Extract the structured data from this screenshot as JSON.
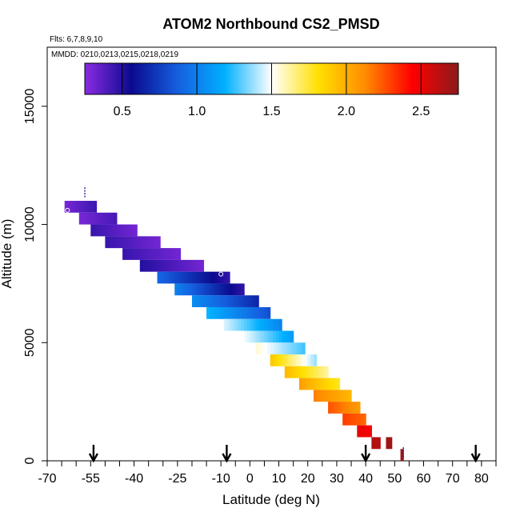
{
  "chart_data": {
    "type": "heatmap",
    "title": "ATOM2 Northbound CS2_PMSD",
    "flights_label": "Flts: 6,7,8,9,10",
    "mmdd_label": "MMDD: 0210,0213,0215,0218,0219",
    "xlabel": "Latitude (deg N)",
    "ylabel": "Altitude (m)",
    "xlim": [
      -70,
      85
    ],
    "ylim": [
      0,
      17500
    ],
    "x_ticks": [
      -70,
      -55,
      -40,
      -25,
      -10,
      0,
      10,
      20,
      30,
      40,
      50,
      60,
      70,
      80
    ],
    "y_ticks": [
      0,
      5000,
      10000,
      15000
    ],
    "colorbar": {
      "range": [
        0.25,
        2.75
      ],
      "ticks": [
        0.5,
        1.0,
        1.5,
        2.0,
        2.5
      ],
      "tick_labels": [
        "0.5",
        "1.0",
        "1.5",
        "2.0",
        "2.5"
      ],
      "stops": [
        "#8a2be2",
        "#0a0a8f",
        "#1560e0",
        "#00b0ff",
        "#ffffff",
        "#ffe000",
        "#ff8c00",
        "#ff0000",
        "#8b1a1a"
      ]
    },
    "bands": [
      {
        "lat0": -64,
        "lat1": -53,
        "alt": 10750,
        "v0": 0.3,
        "v1": 0.45
      },
      {
        "lat0": -59,
        "lat1": -46,
        "alt": 10250,
        "v0": 0.3,
        "v1": 0.42
      },
      {
        "lat0": -55,
        "lat1": -39,
        "alt": 9750,
        "v0": 0.45,
        "v1": 0.3
      },
      {
        "lat0": -50,
        "lat1": -31,
        "alt": 9250,
        "v0": 0.45,
        "v1": 0.3
      },
      {
        "lat0": -44,
        "lat1": -24,
        "alt": 8750,
        "v0": 0.45,
        "v1": 0.3
      },
      {
        "lat0": -38,
        "lat1": -16,
        "alt": 8250,
        "v0": 0.5,
        "v1": 0.3
      },
      {
        "lat0": -32,
        "lat1": -7,
        "alt": 7750,
        "v0": 0.9,
        "v1": 0.45
      },
      {
        "lat0": -26,
        "lat1": -2,
        "alt": 7250,
        "v0": 1.0,
        "v1": 0.45
      },
      {
        "lat0": -20,
        "lat1": 3,
        "alt": 6750,
        "v0": 1.05,
        "v1": 0.65
      },
      {
        "lat0": -15,
        "lat1": 7,
        "alt": 6250,
        "v0": 1.2,
        "v1": 0.8
      },
      {
        "lat0": -9,
        "lat1": 11,
        "alt": 5750,
        "v0": 1.45,
        "v1": 1.0
      },
      {
        "lat0": -3,
        "lat1": 15,
        "alt": 5250,
        "v0": 1.5,
        "v1": 1.1
      },
      {
        "lat0": 2,
        "lat1": 19,
        "alt": 4750,
        "v0": 1.55,
        "v1": 1.25
      },
      {
        "lat0": 7,
        "lat1": 23,
        "alt": 4250,
        "v0": 1.9,
        "v1": 1.35
      },
      {
        "lat0": 12,
        "lat1": 27,
        "alt": 3750,
        "v0": 1.95,
        "v1": 1.6
      },
      {
        "lat0": 17,
        "lat1": 31,
        "alt": 3250,
        "v0": 2.05,
        "v1": 1.75
      },
      {
        "lat0": 22,
        "lat1": 35,
        "alt": 2750,
        "v0": 2.15,
        "v1": 1.95
      },
      {
        "lat0": 27,
        "lat1": 38,
        "alt": 2250,
        "v0": 2.25,
        "v1": 2.05
      },
      {
        "lat0": 32,
        "lat1": 40,
        "alt": 1750,
        "v0": 2.3,
        "v1": 2.2
      },
      {
        "lat0": 37,
        "lat1": 42,
        "alt": 1250,
        "v0": 2.5,
        "v1": 2.45
      },
      {
        "lat0": 42,
        "lat1": 45,
        "alt": 750,
        "v0": 2.65,
        "v1": 2.62
      },
      {
        "lat0": 47,
        "lat1": 49,
        "alt": 750,
        "v0": 2.7,
        "v1": 2.7
      },
      {
        "lat0": 52,
        "lat1": 53,
        "alt": 250,
        "v0": 2.7,
        "v1": 2.7
      }
    ],
    "arrow_latitudes": [
      -54,
      -8,
      40,
      78
    ],
    "markers": [
      {
        "lat": -57,
        "alt": 11300,
        "symbol": "|"
      },
      {
        "lat": -63,
        "alt": 10600,
        "symbol": "o"
      },
      {
        "lat": -10,
        "alt": 7900,
        "symbol": "o"
      },
      {
        "lat": 53,
        "alt": 300,
        "symbol": "|"
      }
    ]
  }
}
